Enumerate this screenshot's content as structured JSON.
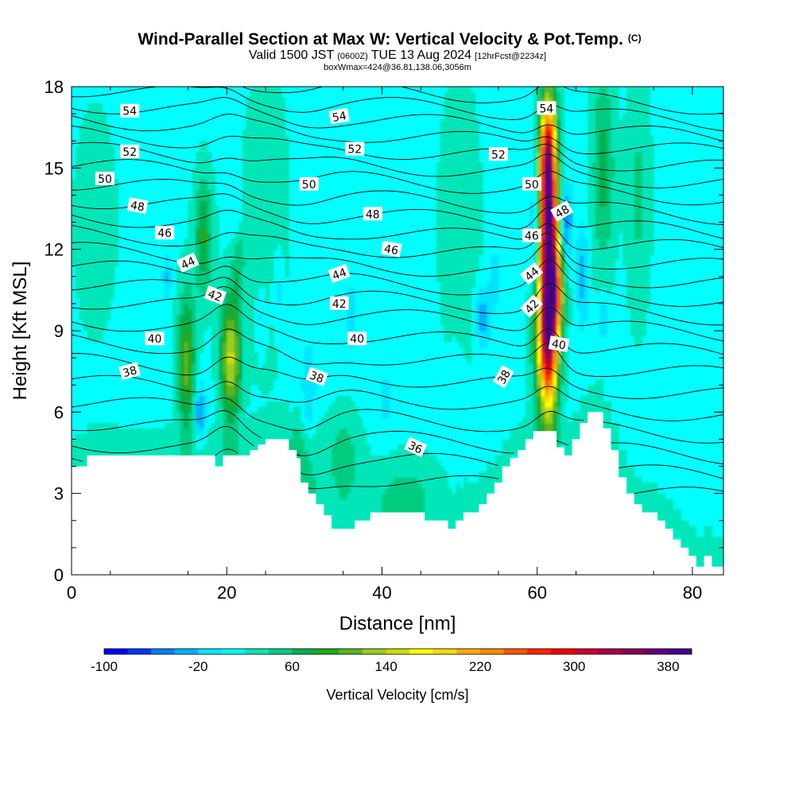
{
  "chart_data": {
    "type": "heatmap",
    "title": "Wind-Parallel Section at Max W: Vertical Velocity & Pot.Temp.",
    "title_mark": "(C)",
    "subtitle_parts": [
      "Valid 1500 JST",
      "(0600Z)",
      "TUE 13 Aug 2024",
      "[12hrFcst@2234z]"
    ],
    "subtitle2": "boxWmax=424@36.81,138.06,3056m",
    "xlabel": "Distance [nm]",
    "ylabel": "Height [Kft MSL]",
    "xlim": [
      0,
      84
    ],
    "ylim": [
      0,
      18
    ],
    "x_ticks": [
      0,
      20,
      40,
      60,
      80
    ],
    "y_ticks": [
      0,
      3,
      6,
      9,
      12,
      15,
      18
    ],
    "colorbar": {
      "title": "Vertical Velocity [cm/s]",
      "min": -100,
      "max": 400,
      "step": 20,
      "tick_labels": [
        -100,
        -20,
        60,
        140,
        220,
        300,
        380
      ],
      "colors": [
        "#0000ff",
        "#0033ff",
        "#0080ff",
        "#00b0ff",
        "#00e5ff",
        "#00ffff",
        "#00e6b8",
        "#00cc80",
        "#00b050",
        "#22a822",
        "#5ab61e",
        "#99cc22",
        "#ccdd00",
        "#ffff00",
        "#ffd700",
        "#ffaa00",
        "#ff8800",
        "#ff5500",
        "#ff2200",
        "#ee0000",
        "#cc0033",
        "#aa0044",
        "#880055",
        "#660077",
        "#440088"
      ]
    },
    "terrain_kft": [
      [
        0,
        4.0
      ],
      [
        2,
        4.0
      ],
      [
        2,
        4.4
      ],
      [
        5,
        4.4
      ],
      [
        10,
        4.4
      ],
      [
        15,
        4.4
      ],
      [
        18.5,
        4.4
      ],
      [
        18.5,
        4.0
      ],
      [
        19.5,
        4.0
      ],
      [
        19.5,
        4.4
      ],
      [
        23,
        4.4
      ],
      [
        23,
        4.6
      ],
      [
        24,
        4.6
      ],
      [
        24,
        4.8
      ],
      [
        25,
        4.8
      ],
      [
        25,
        5.0
      ],
      [
        28,
        5.0
      ],
      [
        28,
        4.6
      ],
      [
        29,
        4.6
      ],
      [
        29,
        4.3
      ],
      [
        29.5,
        4.3
      ],
      [
        29.5,
        3.4
      ],
      [
        30.5,
        3.4
      ],
      [
        30.5,
        3.0
      ],
      [
        31.5,
        3.0
      ],
      [
        31.5,
        2.6
      ],
      [
        32.5,
        2.6
      ],
      [
        32.5,
        2.2
      ],
      [
        33.5,
        2.2
      ],
      [
        33.5,
        1.7
      ],
      [
        36.5,
        1.7
      ],
      [
        36.5,
        2.0
      ],
      [
        38.5,
        2.0
      ],
      [
        38.5,
        2.3
      ],
      [
        45.5,
        2.3
      ],
      [
        45.5,
        2.0
      ],
      [
        48.5,
        2.0
      ],
      [
        48.5,
        1.7
      ],
      [
        49.5,
        1.7
      ],
      [
        49.5,
        2.0
      ],
      [
        50.5,
        2.0
      ],
      [
        50.5,
        2.3
      ],
      [
        52.5,
        2.3
      ],
      [
        52.5,
        2.6
      ],
      [
        53.5,
        2.6
      ],
      [
        53.5,
        3.0
      ],
      [
        54.5,
        3.0
      ],
      [
        54.5,
        3.4
      ],
      [
        55.5,
        3.4
      ],
      [
        55.5,
        4.0
      ],
      [
        56.5,
        4.0
      ],
      [
        56.5,
        4.3
      ],
      [
        57.5,
        4.3
      ],
      [
        57.5,
        4.6
      ],
      [
        58.5,
        4.6
      ],
      [
        58.5,
        5.0
      ],
      [
        59.5,
        5.0
      ],
      [
        59.5,
        5.3
      ],
      [
        62.5,
        5.3
      ],
      [
        62.5,
        4.7
      ],
      [
        63.5,
        4.7
      ],
      [
        63.5,
        4.4
      ],
      [
        64.5,
        4.4
      ],
      [
        64.5,
        5.0
      ],
      [
        65.5,
        5.0
      ],
      [
        65.5,
        5.6
      ],
      [
        66.5,
        5.6
      ],
      [
        66.5,
        6.0
      ],
      [
        68.5,
        6.0
      ],
      [
        68.5,
        5.4
      ],
      [
        69.5,
        5.4
      ],
      [
        69.5,
        4.6
      ],
      [
        70.5,
        4.6
      ],
      [
        70.5,
        3.6
      ],
      [
        71.5,
        3.6
      ],
      [
        71.5,
        3.0
      ],
      [
        72.5,
        3.0
      ],
      [
        72.5,
        2.6
      ],
      [
        73.5,
        2.6
      ],
      [
        73.5,
        2.3
      ],
      [
        75.5,
        2.3
      ],
      [
        75.5,
        2.0
      ],
      [
        76.5,
        2.0
      ],
      [
        76.5,
        1.7
      ],
      [
        77.5,
        1.7
      ],
      [
        77.5,
        1.3
      ],
      [
        78.5,
        1.3
      ],
      [
        78.5,
        1.0
      ],
      [
        79.5,
        1.0
      ],
      [
        79.5,
        0.7
      ],
      [
        80.5,
        0.7
      ],
      [
        80.5,
        0.3
      ],
      [
        81.5,
        0.3
      ],
      [
        81.5,
        0.7
      ],
      [
        82.5,
        0.7
      ],
      [
        82.5,
        0.3
      ],
      [
        84,
        0.3
      ]
    ],
    "updrafts": [
      {
        "x": 61.5,
        "y": 12.0,
        "sx": 0.8,
        "sy": 3.2,
        "w": 380
      },
      {
        "x": 61.2,
        "y": 8.5,
        "sx": 1.0,
        "sy": 1.8,
        "w": 160
      },
      {
        "x": 61.3,
        "y": 15.5,
        "sx": 0.7,
        "sy": 1.3,
        "w": 150
      },
      {
        "x": 20.5,
        "y": 8.0,
        "sx": 0.9,
        "sy": 1.6,
        "w": 130
      },
      {
        "x": 17.0,
        "y": 12.5,
        "sx": 0.8,
        "sy": 1.5,
        "w": 70
      },
      {
        "x": 14.8,
        "y": 7.8,
        "sx": 0.8,
        "sy": 1.8,
        "w": 95
      },
      {
        "x": 62.5,
        "y": 10.5,
        "sx": 0.7,
        "sy": 1.2,
        "w": 120
      },
      {
        "x": 68.5,
        "y": 15.0,
        "sx": 1.0,
        "sy": 2.5,
        "w": 55
      },
      {
        "x": 21.5,
        "y": 12.0,
        "sx": 0.6,
        "sy": 1.2,
        "w": 45
      },
      {
        "x": 30.0,
        "y": 4.5,
        "sx": 1.2,
        "sy": 1.0,
        "w": 40
      },
      {
        "x": 35.0,
        "y": 4.2,
        "sx": 1.5,
        "sy": 1.2,
        "w": 40
      },
      {
        "x": 43.0,
        "y": 3.3,
        "sx": 3.0,
        "sy": 0.8,
        "w": 25
      },
      {
        "x": 73.0,
        "y": 14.0,
        "sx": 1.0,
        "sy": 3.0,
        "w": 30
      },
      {
        "x": 3.0,
        "y": 13.0,
        "sx": 2.0,
        "sy": 3.0,
        "w": 15
      },
      {
        "x": 25.0,
        "y": 13.0,
        "sx": 2.0,
        "sy": 4.0,
        "w": 18
      },
      {
        "x": 50.0,
        "y": 13.0,
        "sx": 2.0,
        "sy": 4.0,
        "w": 15
      }
    ],
    "downdrafts": [
      {
        "x": 63.7,
        "y": 13.0,
        "sx": 0.5,
        "sy": 1.0,
        "w": -70
      },
      {
        "x": 59.7,
        "y": 13.0,
        "sx": 0.4,
        "sy": 1.3,
        "w": -50
      },
      {
        "x": 16.5,
        "y": 6.0,
        "sx": 0.5,
        "sy": 0.8,
        "w": -60
      },
      {
        "x": 21.3,
        "y": 13.0,
        "sx": 0.6,
        "sy": 0.8,
        "w": -40
      },
      {
        "x": 30.5,
        "y": 6.5,
        "sx": 0.6,
        "sy": 1.5,
        "w": -40
      },
      {
        "x": 12.3,
        "y": 11.0,
        "sx": 0.4,
        "sy": 0.6,
        "w": -40
      },
      {
        "x": 53.0,
        "y": 9.5,
        "sx": 0.7,
        "sy": 0.8,
        "w": -50
      },
      {
        "x": 24.5,
        "y": 9.5,
        "sx": 0.5,
        "sy": 0.8,
        "w": -30
      },
      {
        "x": 26.5,
        "y": 10.5,
        "sx": 0.5,
        "sy": 1.0,
        "w": -30
      },
      {
        "x": 65.8,
        "y": 11.0,
        "sx": 0.5,
        "sy": 1.5,
        "w": -40
      },
      {
        "x": 68.5,
        "y": 9.5,
        "sx": 0.4,
        "sy": 0.6,
        "w": -40
      },
      {
        "x": 36.0,
        "y": 9.5,
        "sx": 0.5,
        "sy": 1.0,
        "w": -30
      },
      {
        "x": 40.5,
        "y": 6.5,
        "sx": 0.6,
        "sy": 1.0,
        "w": -20
      },
      {
        "x": 49.5,
        "y": 6.8,
        "sx": 0.6,
        "sy": 1.0,
        "w": -20
      },
      {
        "x": 54.5,
        "y": 11.0,
        "sx": 0.5,
        "sy": 0.8,
        "w": -30
      }
    ],
    "isotherms_c": [
      34,
      35,
      36,
      37,
      38,
      39,
      40,
      41,
      42,
      43,
      44,
      45,
      46,
      47,
      48,
      49,
      50,
      51,
      52,
      53,
      54,
      55,
      56
    ],
    "isotherm_labels": [
      {
        "value": 54,
        "x": 7.5,
        "y": 17.1,
        "angle": 0
      },
      {
        "value": 54,
        "x": 34.5,
        "y": 16.9,
        "angle": 10
      },
      {
        "value": 54,
        "x": 61.2,
        "y": 17.2,
        "angle": 0
      },
      {
        "value": 52,
        "x": 7.5,
        "y": 15.6,
        "angle": 0
      },
      {
        "value": 52,
        "x": 36.5,
        "y": 15.7,
        "angle": 0
      },
      {
        "value": 52,
        "x": 55.0,
        "y": 15.5,
        "angle": 0
      },
      {
        "value": 50,
        "x": 4.3,
        "y": 14.6,
        "angle": 0
      },
      {
        "value": 50,
        "x": 30.6,
        "y": 14.4,
        "angle": 0
      },
      {
        "value": 50,
        "x": 59.3,
        "y": 14.4,
        "angle": 0
      },
      {
        "value": 48,
        "x": 8.5,
        "y": 13.6,
        "angle": -10
      },
      {
        "value": 48,
        "x": 38.8,
        "y": 13.3,
        "angle": 0
      },
      {
        "value": 48,
        "x": 63.2,
        "y": 13.4,
        "angle": 30
      },
      {
        "value": 46,
        "x": 12.0,
        "y": 12.6,
        "angle": 0
      },
      {
        "value": 46,
        "x": 41.2,
        "y": 12.0,
        "angle": -10
      },
      {
        "value": 46,
        "x": 59.3,
        "y": 12.5,
        "angle": 0
      },
      {
        "value": 44,
        "x": 15.0,
        "y": 11.5,
        "angle": 25
      },
      {
        "value": 44,
        "x": 34.5,
        "y": 11.1,
        "angle": 20
      },
      {
        "value": 44,
        "x": 59.3,
        "y": 11.1,
        "angle": 40
      },
      {
        "value": 42,
        "x": 18.5,
        "y": 10.3,
        "angle": -20
      },
      {
        "value": 42,
        "x": 34.5,
        "y": 10.0,
        "angle": 0
      },
      {
        "value": 42,
        "x": 59.3,
        "y": 9.9,
        "angle": 45
      },
      {
        "value": 40,
        "x": 10.7,
        "y": 8.7,
        "angle": 0
      },
      {
        "value": 40,
        "x": 36.8,
        "y": 8.7,
        "angle": 0
      },
      {
        "value": 40,
        "x": 62.8,
        "y": 8.5,
        "angle": -10
      },
      {
        "value": 38,
        "x": 7.5,
        "y": 7.5,
        "angle": 15
      },
      {
        "value": 38,
        "x": 31.6,
        "y": 7.3,
        "angle": -20
      },
      {
        "value": 38,
        "x": 55.7,
        "y": 7.3,
        "angle": 60
      },
      {
        "value": 36,
        "x": 44.3,
        "y": 4.7,
        "angle": -25
      }
    ]
  }
}
